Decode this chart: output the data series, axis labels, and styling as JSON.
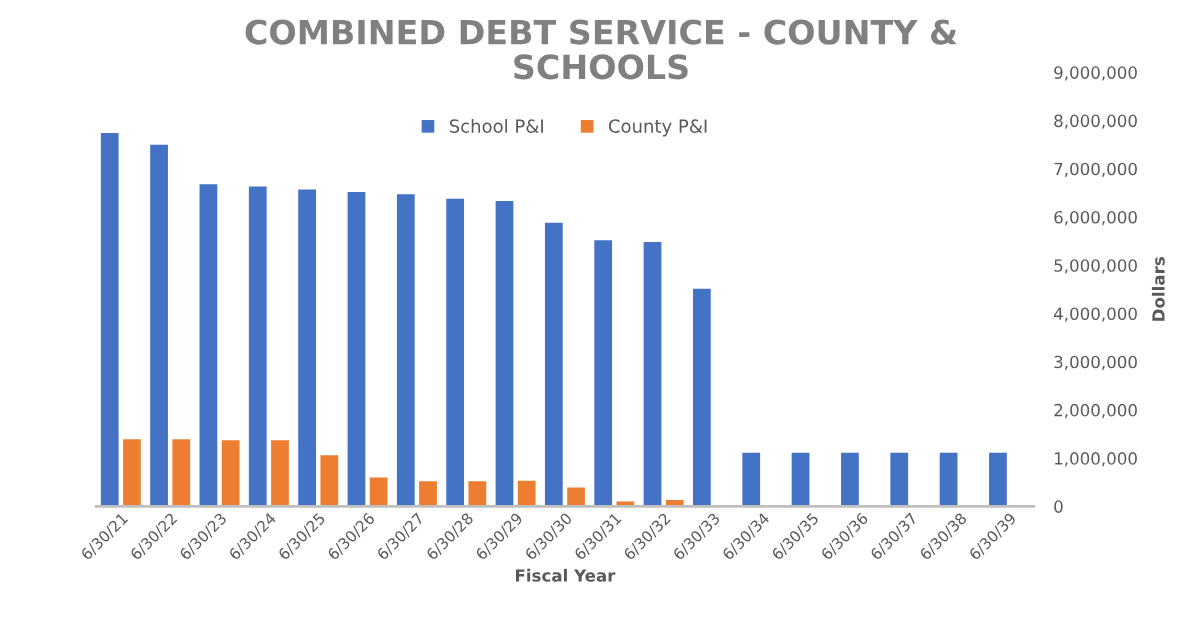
{
  "chart_data": {
    "type": "bar",
    "title": "COMBINED DEBT SERVICE - COUNTY &\nSCHOOLS",
    "xlabel": "Fiscal Year",
    "ylabel": "Dollars",
    "categories": [
      "6/30/21",
      "6/30/22",
      "6/30/23",
      "6/30/24",
      "6/30/25",
      "6/30/26",
      "6/30/27",
      "6/30/28",
      "6/30/29",
      "6/30/30",
      "6/30/31",
      "6/30/32",
      "6/30/33",
      "6/30/34",
      "6/30/35",
      "6/30/36",
      "6/30/37",
      "6/30/38",
      "6/30/39"
    ],
    "series": [
      {
        "name": "School P&I",
        "color": "#4472c4",
        "values": [
          7740000,
          7500000,
          6680000,
          6630000,
          6570000,
          6520000,
          6470000,
          6380000,
          6330000,
          5880000,
          5520000,
          5480000,
          4510000,
          1110000,
          1110000,
          1110000,
          1110000,
          1110000,
          1110000
        ]
      },
      {
        "name": "County P&I",
        "color": "#ed7d31",
        "values": [
          1390000,
          1390000,
          1370000,
          1370000,
          1060000,
          600000,
          520000,
          520000,
          530000,
          390000,
          100000,
          130000,
          null,
          null,
          null,
          null,
          null,
          null,
          null
        ]
      }
    ],
    "ylim": [
      0,
      9000000
    ],
    "yticks": [
      {
        "value": 0,
        "label": "0"
      },
      {
        "value": 1000000,
        "label": "1,000,000"
      },
      {
        "value": 2000000,
        "label": "2,000,000"
      },
      {
        "value": 3000000,
        "label": "3,000,000"
      },
      {
        "value": 4000000,
        "label": "4,000,000"
      },
      {
        "value": 5000000,
        "label": "5,000,000"
      },
      {
        "value": 6000000,
        "label": "6,000,000"
      },
      {
        "value": 7000000,
        "label": "7,000,000"
      },
      {
        "value": 8000000,
        "label": "8,000,000"
      },
      {
        "value": 9000000,
        "label": "9,000,000"
      }
    ],
    "grid": false,
    "legend": "top"
  }
}
